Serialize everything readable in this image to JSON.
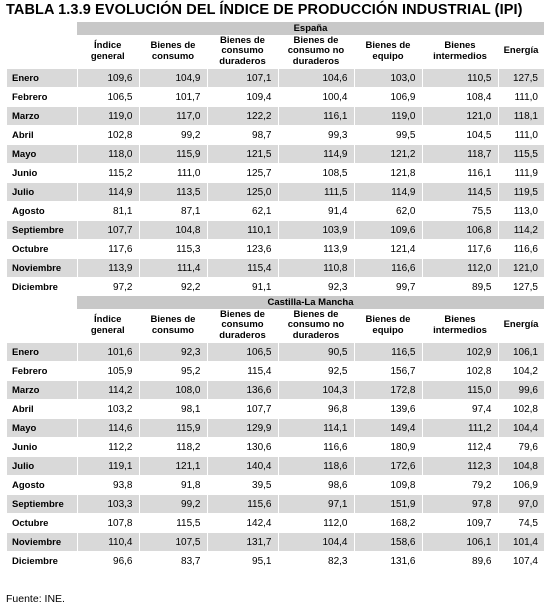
{
  "title": "TABLA 1.3.9  EVOLUCIÓN DEL ÍNDICE DE PRODUCCIÓN INDUSTRIAL (IPI)",
  "columns": [
    "Índice general",
    "Bienes de consumo",
    "Bienes de consumo duraderos",
    "Bienes de consumo no duraderos",
    "Bienes de equipo",
    "Bienes intermedios",
    "Energía"
  ],
  "sections": [
    {
      "name": "España",
      "rows": [
        {
          "month": "Enero",
          "values": [
            "109,6",
            "104,9",
            "107,1",
            "104,6",
            "103,0",
            "110,5",
            "127,5"
          ]
        },
        {
          "month": "Febrero",
          "values": [
            "106,5",
            "101,7",
            "109,4",
            "100,4",
            "106,9",
            "108,4",
            "111,0"
          ]
        },
        {
          "month": "Marzo",
          "values": [
            "119,0",
            "117,0",
            "122,2",
            "116,1",
            "119,0",
            "121,0",
            "118,1"
          ]
        },
        {
          "month": "Abril",
          "values": [
            "102,8",
            "99,2",
            "98,7",
            "99,3",
            "99,5",
            "104,5",
            "111,0"
          ]
        },
        {
          "month": "Mayo",
          "values": [
            "118,0",
            "115,9",
            "121,5",
            "114,9",
            "121,2",
            "118,7",
            "115,5"
          ]
        },
        {
          "month": "Junio",
          "values": [
            "115,2",
            "111,0",
            "125,7",
            "108,5",
            "121,8",
            "116,1",
            "111,9"
          ]
        },
        {
          "month": "Julio",
          "values": [
            "114,9",
            "113,5",
            "125,0",
            "111,5",
            "114,9",
            "114,5",
            "119,5"
          ]
        },
        {
          "month": "Agosto",
          "values": [
            "81,1",
            "87,1",
            "62,1",
            "91,4",
            "62,0",
            "75,5",
            "113,0"
          ]
        },
        {
          "month": "Septiembre",
          "values": [
            "107,7",
            "104,8",
            "110,1",
            "103,9",
            "109,6",
            "106,8",
            "114,2"
          ]
        },
        {
          "month": "Octubre",
          "values": [
            "117,6",
            "115,3",
            "123,6",
            "113,9",
            "121,4",
            "117,6",
            "116,6"
          ]
        },
        {
          "month": "Noviembre",
          "values": [
            "113,9",
            "111,4",
            "115,4",
            "110,8",
            "116,6",
            "112,0",
            "121,0"
          ]
        },
        {
          "month": "Diciembre",
          "values": [
            "97,2",
            "92,2",
            "91,1",
            "92,3",
            "99,7",
            "89,5",
            "127,5"
          ]
        }
      ]
    },
    {
      "name": "Castilla-La Mancha",
      "rows": [
        {
          "month": "Enero",
          "values": [
            "101,6",
            "92,3",
            "106,5",
            "90,5",
            "116,5",
            "102,9",
            "106,1"
          ]
        },
        {
          "month": "Febrero",
          "values": [
            "105,9",
            "95,2",
            "115,4",
            "92,5",
            "156,7",
            "102,8",
            "104,2"
          ]
        },
        {
          "month": "Marzo",
          "values": [
            "114,2",
            "108,0",
            "136,6",
            "104,3",
            "172,8",
            "115,0",
            "99,6"
          ]
        },
        {
          "month": "Abril",
          "values": [
            "103,2",
            "98,1",
            "107,7",
            "96,8",
            "139,6",
            "97,4",
            "102,8"
          ]
        },
        {
          "month": "Mayo",
          "values": [
            "114,6",
            "115,9",
            "129,9",
            "114,1",
            "149,4",
            "111,2",
            "104,4"
          ]
        },
        {
          "month": "Junio",
          "values": [
            "112,2",
            "118,2",
            "130,6",
            "116,6",
            "180,9",
            "112,4",
            "79,6"
          ]
        },
        {
          "month": "Julio",
          "values": [
            "119,1",
            "121,1",
            "140,4",
            "118,6",
            "172,6",
            "112,3",
            "104,8"
          ]
        },
        {
          "month": "Agosto",
          "values": [
            "93,8",
            "91,8",
            "39,5",
            "98,6",
            "109,8",
            "79,2",
            "106,9"
          ]
        },
        {
          "month": "Septiembre",
          "values": [
            "103,3",
            "99,2",
            "115,6",
            "97,1",
            "151,9",
            "97,8",
            "97,0"
          ]
        },
        {
          "month": "Octubre",
          "values": [
            "107,8",
            "115,5",
            "142,4",
            "112,0",
            "168,2",
            "109,7",
            "74,5"
          ]
        },
        {
          "month": "Noviembre",
          "values": [
            "110,4",
            "107,5",
            "131,7",
            "104,4",
            "158,6",
            "106,1",
            "101,4"
          ]
        },
        {
          "month": "Diciembre",
          "values": [
            "96,6",
            "83,7",
            "95,1",
            "82,3",
            "131,6",
            "89,6",
            "107,4"
          ]
        }
      ]
    }
  ],
  "footer": "Fuente: INE."
}
